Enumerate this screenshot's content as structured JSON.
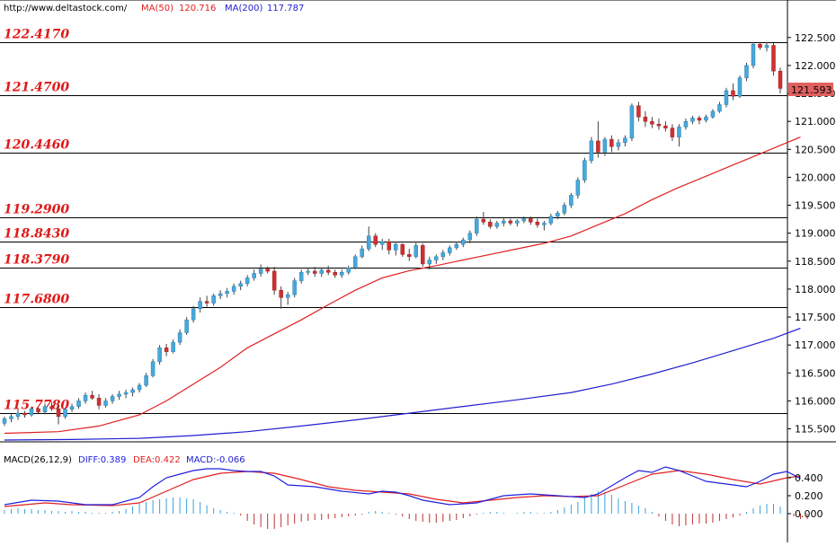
{
  "header": {
    "site": "http://www.deltastock.com/",
    "ma50_label": "MA(50)",
    "ma50_value": "120.716",
    "ma200_label": "MA(200)",
    "ma200_value": "117.787"
  },
  "price_axis": {
    "ticks": [
      "122.500",
      "122.000",
      "121.500",
      "121.000",
      "120.500",
      "120.000",
      "119.500",
      "119.000",
      "118.500",
      "118.000",
      "117.500",
      "117.000",
      "116.500",
      "116.000",
      "115.500"
    ],
    "range": [
      115.3,
      122.85
    ],
    "current_price": "121.593"
  },
  "levels": [
    "122.4170",
    "121.4700",
    "120.4460",
    "119.2900",
    "118.8430",
    "118.3790",
    "117.6800",
    "115.7780"
  ],
  "colors": {
    "up": "#48a8dc",
    "down": "#d03030",
    "ma50": "#e02020",
    "ma200": "#2020d0",
    "macd_diff": "#2020e0",
    "macd_dea": "#e02020",
    "macd_hist": "#3aa0d8",
    "macd_hist_neg": "#c03030"
  },
  "macd": {
    "label": "MACD(26,12,9)",
    "diff_label": "DIFF:0.389",
    "dea_label": "DEA:0.422",
    "macd_label": "MACD:-0.066",
    "ticks": [
      "0.400",
      "0.200",
      "0.000"
    ],
    "range": [
      -0.28,
      0.62
    ]
  },
  "chart_data": {
    "type": "candlestick",
    "y_range": [
      115.3,
      122.85
    ],
    "ohlc": [
      [
        115.6,
        115.72,
        115.55,
        115.68
      ],
      [
        115.68,
        115.78,
        115.62,
        115.72
      ],
      [
        115.72,
        115.85,
        115.66,
        115.78
      ],
      [
        115.78,
        115.82,
        115.7,
        115.75
      ],
      [
        115.75,
        115.9,
        115.72,
        115.86
      ],
      [
        115.86,
        115.88,
        115.78,
        115.8
      ],
      [
        115.8,
        115.95,
        115.76,
        115.9
      ],
      [
        115.9,
        115.98,
        115.82,
        115.86
      ],
      [
        115.86,
        115.92,
        115.58,
        115.72
      ],
      [
        115.72,
        115.88,
        115.68,
        115.85
      ],
      [
        115.85,
        115.95,
        115.8,
        115.9
      ],
      [
        115.9,
        116.05,
        115.86,
        116.0
      ],
      [
        116.0,
        116.15,
        115.95,
        116.1
      ],
      [
        116.1,
        116.18,
        116.02,
        116.05
      ],
      [
        116.05,
        116.12,
        115.85,
        115.92
      ],
      [
        115.92,
        116.05,
        115.88,
        116.0
      ],
      [
        116.0,
        116.12,
        115.95,
        116.08
      ],
      [
        116.08,
        116.18,
        116.02,
        116.12
      ],
      [
        116.12,
        116.2,
        116.05,
        116.15
      ],
      [
        116.15,
        116.24,
        116.08,
        116.2
      ],
      [
        116.2,
        116.32,
        116.15,
        116.28
      ],
      [
        116.28,
        116.5,
        116.25,
        116.45
      ],
      [
        116.45,
        116.75,
        116.42,
        116.7
      ],
      [
        116.7,
        117.0,
        116.65,
        116.95
      ],
      [
        116.95,
        117.02,
        116.8,
        116.88
      ],
      [
        116.88,
        117.1,
        116.85,
        117.05
      ],
      [
        117.05,
        117.28,
        117.0,
        117.22
      ],
      [
        117.22,
        117.5,
        117.18,
        117.45
      ],
      [
        117.45,
        117.7,
        117.4,
        117.65
      ],
      [
        117.65,
        117.85,
        117.58,
        117.78
      ],
      [
        117.78,
        117.88,
        117.68,
        117.75
      ],
      [
        117.75,
        117.92,
        117.7,
        117.88
      ],
      [
        117.88,
        117.98,
        117.82,
        117.92
      ],
      [
        117.92,
        118.02,
        117.85,
        117.96
      ],
      [
        117.96,
        118.1,
        117.9,
        118.05
      ],
      [
        118.05,
        118.15,
        117.98,
        118.1
      ],
      [
        118.1,
        118.25,
        118.05,
        118.2
      ],
      [
        118.2,
        118.35,
        118.15,
        118.28
      ],
      [
        118.28,
        118.44,
        118.22,
        118.36
      ],
      [
        118.36,
        118.4,
        118.28,
        118.32
      ],
      [
        118.32,
        118.4,
        117.9,
        117.98
      ],
      [
        117.98,
        118.05,
        117.65,
        117.85
      ],
      [
        117.85,
        117.95,
        117.72,
        117.9
      ],
      [
        117.9,
        118.2,
        117.85,
        118.15
      ],
      [
        118.15,
        118.35,
        118.1,
        118.3
      ],
      [
        118.3,
        118.38,
        118.25,
        118.32
      ],
      [
        118.32,
        118.4,
        118.22,
        118.28
      ],
      [
        118.28,
        118.38,
        118.22,
        118.34
      ],
      [
        118.34,
        118.42,
        118.25,
        118.3
      ],
      [
        118.3,
        118.35,
        118.2,
        118.25
      ],
      [
        118.25,
        118.35,
        118.2,
        118.3
      ],
      [
        118.3,
        118.42,
        118.26,
        118.38
      ],
      [
        118.38,
        118.62,
        118.35,
        118.58
      ],
      [
        118.58,
        118.78,
        118.55,
        118.72
      ],
      [
        118.72,
        119.12,
        118.68,
        118.95
      ],
      [
        118.95,
        119.0,
        118.75,
        118.8
      ],
      [
        118.8,
        118.9,
        118.7,
        118.85
      ],
      [
        118.85,
        118.9,
        118.62,
        118.7
      ],
      [
        118.7,
        118.85,
        118.6,
        118.8
      ],
      [
        118.8,
        118.82,
        118.58,
        118.62
      ],
      [
        118.62,
        118.72,
        118.5,
        118.58
      ],
      [
        118.58,
        118.85,
        118.55,
        118.78
      ],
      [
        118.78,
        118.82,
        118.4,
        118.45
      ],
      [
        118.45,
        118.58,
        118.35,
        118.52
      ],
      [
        118.52,
        118.62,
        118.45,
        118.58
      ],
      [
        118.58,
        118.7,
        118.52,
        118.65
      ],
      [
        118.65,
        118.78,
        118.6,
        118.74
      ],
      [
        118.74,
        118.85,
        118.7,
        118.8
      ],
      [
        118.8,
        118.92,
        118.75,
        118.88
      ],
      [
        118.88,
        119.05,
        118.82,
        119.0
      ],
      [
        119.0,
        119.3,
        118.95,
        119.25
      ],
      [
        119.25,
        119.38,
        119.15,
        119.2
      ],
      [
        119.2,
        119.25,
        119.08,
        119.12
      ],
      [
        119.12,
        119.22,
        119.08,
        119.18
      ],
      [
        119.18,
        119.28,
        119.12,
        119.22
      ],
      [
        119.22,
        119.26,
        119.14,
        119.18
      ],
      [
        119.18,
        119.25,
        119.12,
        119.22
      ],
      [
        119.22,
        119.3,
        119.18,
        119.26
      ],
      [
        119.26,
        119.3,
        119.15,
        119.2
      ],
      [
        119.2,
        119.26,
        119.1,
        119.15
      ],
      [
        119.15,
        119.22,
        119.05,
        119.18
      ],
      [
        119.18,
        119.35,
        119.14,
        119.3
      ],
      [
        119.3,
        119.4,
        119.25,
        119.36
      ],
      [
        119.36,
        119.55,
        119.32,
        119.5
      ],
      [
        119.5,
        119.72,
        119.45,
        119.68
      ],
      [
        119.68,
        120.0,
        119.62,
        119.95
      ],
      [
        119.95,
        120.35,
        119.9,
        120.3
      ],
      [
        120.3,
        120.72,
        120.25,
        120.65
      ],
      [
        120.65,
        121.0,
        120.35,
        120.45
      ],
      [
        120.45,
        120.72,
        120.38,
        120.68
      ],
      [
        120.68,
        120.75,
        120.45,
        120.55
      ],
      [
        120.55,
        120.68,
        120.48,
        120.62
      ],
      [
        120.62,
        120.75,
        120.55,
        120.7
      ],
      [
        120.7,
        121.32,
        120.65,
        121.28
      ],
      [
        121.28,
        121.35,
        121.0,
        121.08
      ],
      [
        121.08,
        121.18,
        120.9,
        121.0
      ],
      [
        121.0,
        121.08,
        120.88,
        120.95
      ],
      [
        120.95,
        121.05,
        120.85,
        120.92
      ],
      [
        120.92,
        121.0,
        120.82,
        120.88
      ],
      [
        120.88,
        120.95,
        120.65,
        120.72
      ],
      [
        120.72,
        120.95,
        120.55,
        120.9
      ],
      [
        120.9,
        121.05,
        120.85,
        121.0
      ],
      [
        121.0,
        121.1,
        120.95,
        121.06
      ],
      [
        121.06,
        121.1,
        120.95,
        121.02
      ],
      [
        121.02,
        121.12,
        120.98,
        121.08
      ],
      [
        121.08,
        121.22,
        121.05,
        121.18
      ],
      [
        121.18,
        121.35,
        121.15,
        121.3
      ],
      [
        121.3,
        121.6,
        121.25,
        121.55
      ],
      [
        121.55,
        121.68,
        121.38,
        121.45
      ],
      [
        121.45,
        121.82,
        121.42,
        121.78
      ],
      [
        121.78,
        122.05,
        121.72,
        122.0
      ],
      [
        122.0,
        122.42,
        121.95,
        122.38
      ],
      [
        122.38,
        122.42,
        122.28,
        122.32
      ],
      [
        122.32,
        122.42,
        122.25,
        122.36
      ],
      [
        122.36,
        122.4,
        121.82,
        121.9
      ],
      [
        121.9,
        121.96,
        121.5,
        121.59
      ]
    ],
    "ma50": [
      [
        0,
        115.42
      ],
      [
        8,
        115.45
      ],
      [
        14,
        115.55
      ],
      [
        20,
        115.75
      ],
      [
        24,
        116.0
      ],
      [
        28,
        116.3
      ],
      [
        32,
        116.6
      ],
      [
        36,
        116.95
      ],
      [
        40,
        117.2
      ],
      [
        44,
        117.45
      ],
      [
        48,
        117.72
      ],
      [
        52,
        117.98
      ],
      [
        56,
        118.2
      ],
      [
        60,
        118.33
      ],
      [
        64,
        118.42
      ],
      [
        68,
        118.52
      ],
      [
        72,
        118.62
      ],
      [
        76,
        118.72
      ],
      [
        80,
        118.82
      ],
      [
        84,
        118.95
      ],
      [
        88,
        119.15
      ],
      [
        92,
        119.35
      ],
      [
        96,
        119.6
      ],
      [
        100,
        119.82
      ],
      [
        104,
        120.02
      ],
      [
        108,
        120.22
      ],
      [
        112,
        120.42
      ],
      [
        116,
        120.62
      ],
      [
        118,
        120.72
      ]
    ],
    "ma200": [
      [
        0,
        115.3
      ],
      [
        10,
        115.31
      ],
      [
        20,
        115.33
      ],
      [
        28,
        115.38
      ],
      [
        36,
        115.45
      ],
      [
        44,
        115.55
      ],
      [
        52,
        115.66
      ],
      [
        60,
        115.78
      ],
      [
        68,
        115.9
      ],
      [
        76,
        116.02
      ],
      [
        84,
        116.15
      ],
      [
        90,
        116.3
      ],
      [
        96,
        116.48
      ],
      [
        102,
        116.68
      ],
      [
        108,
        116.9
      ],
      [
        114,
        117.12
      ],
      [
        118,
        117.3
      ]
    ],
    "macd_diff": [
      [
        0,
        0.1
      ],
      [
        4,
        0.15
      ],
      [
        8,
        0.14
      ],
      [
        12,
        0.1
      ],
      [
        16,
        0.1
      ],
      [
        20,
        0.18
      ],
      [
        22,
        0.3
      ],
      [
        24,
        0.4
      ],
      [
        26,
        0.44
      ],
      [
        28,
        0.48
      ],
      [
        30,
        0.5
      ],
      [
        32,
        0.5
      ],
      [
        34,
        0.48
      ],
      [
        36,
        0.47
      ],
      [
        38,
        0.47
      ],
      [
        40,
        0.42
      ],
      [
        42,
        0.32
      ],
      [
        46,
        0.3
      ],
      [
        50,
        0.25
      ],
      [
        54,
        0.22
      ],
      [
        56,
        0.25
      ],
      [
        58,
        0.24
      ],
      [
        60,
        0.2
      ],
      [
        62,
        0.15
      ],
      [
        66,
        0.1
      ],
      [
        70,
        0.12
      ],
      [
        74,
        0.2
      ],
      [
        78,
        0.22
      ],
      [
        82,
        0.2
      ],
      [
        86,
        0.18
      ],
      [
        88,
        0.22
      ],
      [
        92,
        0.4
      ],
      [
        94,
        0.48
      ],
      [
        96,
        0.46
      ],
      [
        98,
        0.52
      ],
      [
        100,
        0.48
      ],
      [
        102,
        0.42
      ],
      [
        104,
        0.36
      ],
      [
        108,
        0.32
      ],
      [
        110,
        0.3
      ],
      [
        112,
        0.36
      ],
      [
        114,
        0.44
      ],
      [
        116,
        0.47
      ],
      [
        118,
        0.39
      ]
    ],
    "macd_dea": [
      [
        0,
        0.08
      ],
      [
        6,
        0.12
      ],
      [
        10,
        0.1
      ],
      [
        16,
        0.09
      ],
      [
        20,
        0.12
      ],
      [
        24,
        0.25
      ],
      [
        28,
        0.38
      ],
      [
        32,
        0.45
      ],
      [
        36,
        0.47
      ],
      [
        40,
        0.45
      ],
      [
        44,
        0.38
      ],
      [
        48,
        0.3
      ],
      [
        52,
        0.26
      ],
      [
        56,
        0.24
      ],
      [
        60,
        0.22
      ],
      [
        64,
        0.16
      ],
      [
        68,
        0.12
      ],
      [
        72,
        0.15
      ],
      [
        76,
        0.18
      ],
      [
        80,
        0.2
      ],
      [
        84,
        0.19
      ],
      [
        88,
        0.2
      ],
      [
        92,
        0.32
      ],
      [
        96,
        0.44
      ],
      [
        100,
        0.48
      ],
      [
        104,
        0.44
      ],
      [
        108,
        0.38
      ],
      [
        112,
        0.33
      ],
      [
        116,
        0.4
      ],
      [
        118,
        0.42
      ]
    ],
    "macd_hist": [
      0.04,
      0.05,
      0.06,
      0.05,
      0.05,
      0.04,
      0.04,
      0.03,
      0.03,
      0.02,
      0.03,
      0.02,
      0.02,
      0.01,
      0.01,
      0.01,
      0.02,
      0.03,
      0.05,
      0.08,
      0.11,
      0.13,
      0.15,
      0.16,
      0.17,
      0.18,
      0.18,
      0.17,
      0.16,
      0.13,
      0.09,
      0.06,
      0.04,
      0.02,
      0.01,
      -0.02,
      -0.08,
      -0.12,
      -0.15,
      -0.17,
      -0.17,
      -0.15,
      -0.13,
      -0.11,
      -0.09,
      -0.08,
      -0.07,
      -0.07,
      -0.06,
      -0.05,
      -0.04,
      -0.03,
      -0.02,
      -0.01,
      0.02,
      0.03,
      0.02,
      0.01,
      -0.01,
      -0.03,
      -0.06,
      -0.08,
      -0.09,
      -0.1,
      -0.1,
      -0.09,
      -0.08,
      -0.07,
      -0.05,
      -0.03,
      -0.01,
      0.01,
      0.02,
      0.02,
      0.01,
      0.0,
      0.01,
      0.02,
      0.02,
      0.01,
      0.01,
      0.02,
      0.04,
      0.07,
      0.1,
      0.13,
      0.18,
      0.22,
      0.25,
      0.24,
      0.21,
      0.17,
      0.14,
      0.12,
      0.09,
      0.06,
      0.02,
      -0.03,
      -0.08,
      -0.12,
      -0.14,
      -0.13,
      -0.12,
      -0.11,
      -0.11,
      -0.1,
      -0.08,
      -0.06,
      -0.04,
      -0.02,
      0.02,
      0.06,
      0.09,
      0.11,
      0.11,
      0.08,
      0.03,
      -0.03,
      -0.06,
      -0.06
    ]
  }
}
